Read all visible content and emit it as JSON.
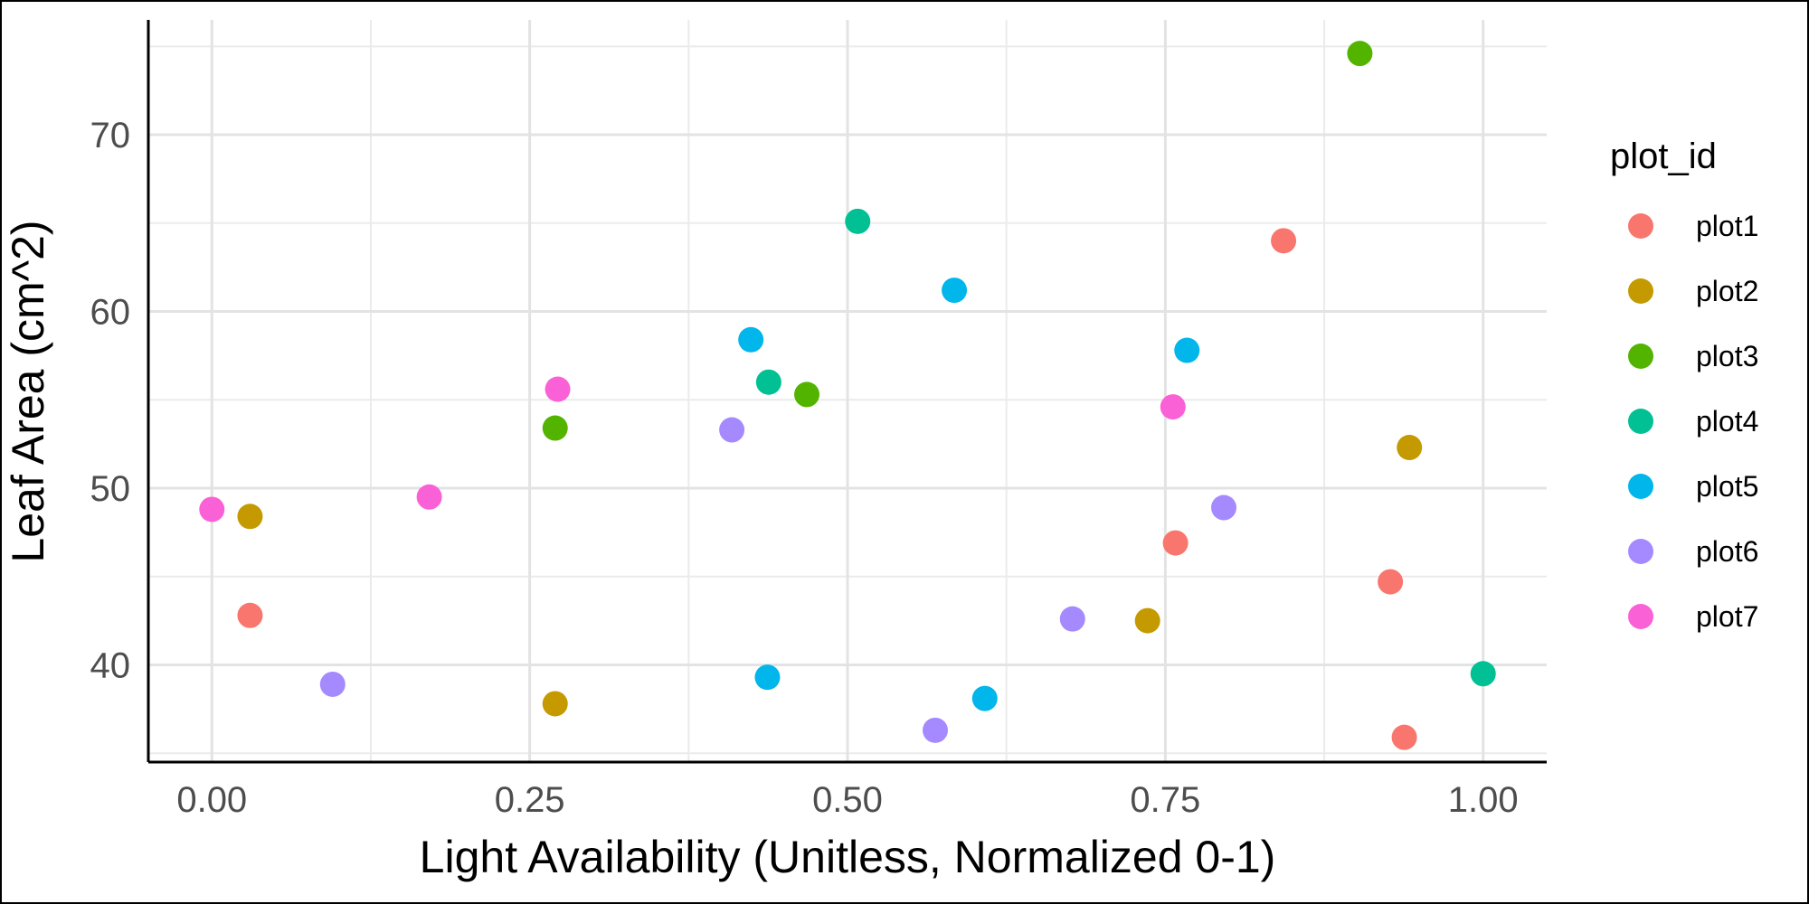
{
  "chart_data": {
    "type": "scatter",
    "title": "",
    "xlabel": "Light Availability (Unitless, Normalized 0-1)",
    "ylabel": "Leaf Area (cm^2)",
    "xlim": [
      -0.05,
      1.05
    ],
    "ylim": [
      34.5,
      76.5
    ],
    "x_ticks": [
      0.0,
      0.25,
      0.5,
      0.75,
      1.0
    ],
    "x_tick_labels": [
      "0.00",
      "0.25",
      "0.50",
      "0.75",
      "1.00"
    ],
    "y_ticks": [
      40,
      50,
      60,
      70
    ],
    "y_tick_labels": [
      "40",
      "50",
      "60",
      "70"
    ],
    "grid": true,
    "legend_title": "plot_id",
    "legend_position": "right",
    "series": [
      {
        "name": "plot1",
        "color": "#F8766D",
        "points": [
          [
            0.03,
            42.8
          ],
          [
            0.758,
            46.9
          ],
          [
            0.843,
            64.0
          ],
          [
            0.927,
            44.7
          ],
          [
            0.938,
            35.9
          ]
        ]
      },
      {
        "name": "plot2",
        "color": "#C49A00",
        "points": [
          [
            0.03,
            48.4
          ],
          [
            0.27,
            37.8
          ],
          [
            0.736,
            42.5
          ],
          [
            0.942,
            52.3
          ]
        ]
      },
      {
        "name": "plot3",
        "color": "#53B400",
        "points": [
          [
            0.27,
            53.4
          ],
          [
            0.468,
            55.3
          ],
          [
            0.903,
            74.6
          ]
        ]
      },
      {
        "name": "plot4",
        "color": "#00C094",
        "points": [
          [
            0.438,
            56.0
          ],
          [
            0.508,
            65.1
          ],
          [
            1.0,
            39.5
          ]
        ]
      },
      {
        "name": "plot5",
        "color": "#00B6EB",
        "points": [
          [
            0.424,
            58.4
          ],
          [
            0.437,
            39.3
          ],
          [
            0.584,
            61.2
          ],
          [
            0.608,
            38.1
          ],
          [
            0.767,
            57.8
          ]
        ]
      },
      {
        "name": "plot6",
        "color": "#A58AFF",
        "points": [
          [
            0.095,
            38.9
          ],
          [
            0.409,
            53.3
          ],
          [
            0.569,
            36.3
          ],
          [
            0.677,
            42.6
          ],
          [
            0.796,
            48.9
          ]
        ]
      },
      {
        "name": "plot7",
        "color": "#FB61D7",
        "points": [
          [
            0.0,
            48.8
          ],
          [
            0.171,
            49.5
          ],
          [
            0.272,
            55.6
          ],
          [
            0.756,
            54.6
          ]
        ]
      }
    ]
  }
}
